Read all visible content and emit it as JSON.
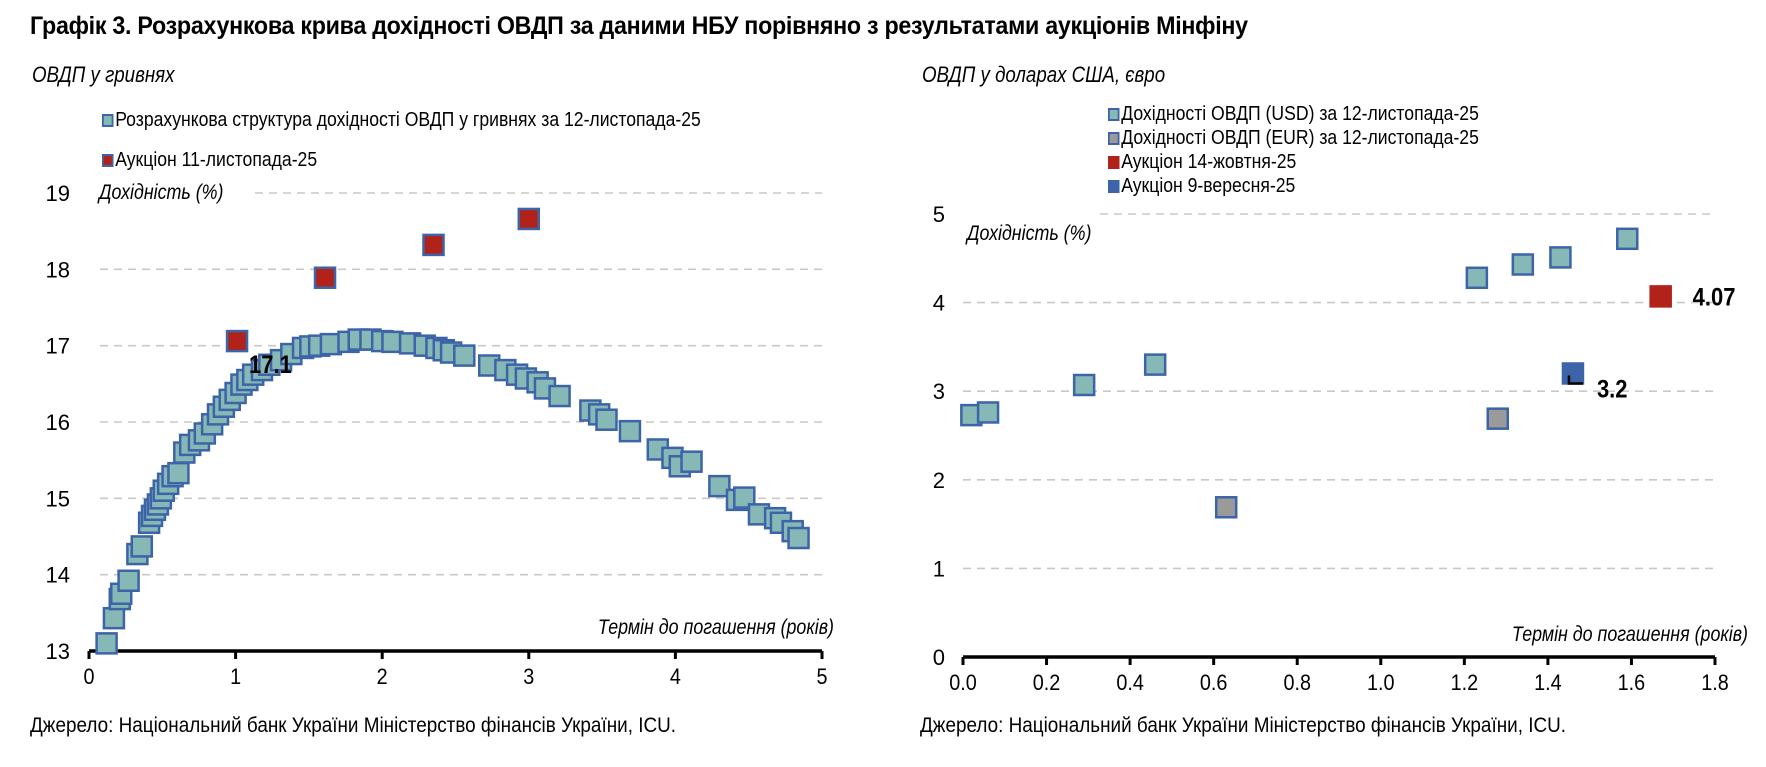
{
  "title": "Графік 3. Розрахункова крива дохідності ОВДП за даними НБУ порівняно з результатами аукціонів Мінфіну",
  "colors": {
    "curve_fill": "#86b9b5",
    "marker_border": "#3d64a8",
    "auction_red": "#b0221a",
    "eur_gray": "#9a9a9a",
    "auction_blue": "#3d64a8",
    "grid": "#c8c8c8"
  },
  "chart_data": [
    {
      "type": "scatter",
      "subtitle": "ОВДП у гривнях",
      "ylabel": "Дохідність (%)",
      "xlabel": "Термін до погашення (років)",
      "xlim": [
        0,
        5
      ],
      "ylim": [
        13,
        19
      ],
      "xticks": [
        "0",
        "1",
        "2",
        "3",
        "4",
        "5"
      ],
      "yticks": [
        "13",
        "14",
        "15",
        "16",
        "17",
        "18",
        "19"
      ],
      "grid": true,
      "legend_position": "top",
      "series": [
        {
          "name": "Розрахункова структура дохідності ОВДП у гривнях за 12-листопада-25",
          "color": "#86b9b5",
          "x": [
            0.12,
            0.17,
            0.21,
            0.22,
            0.27,
            0.33,
            0.36,
            0.41,
            0.43,
            0.45,
            0.47,
            0.49,
            0.51,
            0.54,
            0.57,
            0.61,
            0.65,
            0.69,
            0.75,
            0.79,
            0.84,
            0.88,
            0.92,
            0.96,
            1.0,
            1.04,
            1.08,
            1.12,
            1.18,
            1.23,
            1.31,
            1.38,
            1.46,
            1.51,
            1.57,
            1.65,
            1.77,
            1.84,
            1.92,
            2.0,
            2.07,
            2.19,
            2.29,
            2.37,
            2.42,
            2.47,
            2.56,
            2.73,
            2.84,
            2.92,
            2.98,
            3.06,
            3.11,
            3.21,
            3.42,
            3.48,
            3.53,
            3.69,
            3.88,
            3.98,
            4.03,
            4.11,
            4.3,
            4.42,
            4.47,
            4.57,
            4.68,
            4.72,
            4.8,
            4.84
          ],
          "y": [
            13.1,
            13.43,
            13.68,
            13.75,
            13.92,
            14.27,
            14.37,
            14.68,
            14.77,
            14.85,
            14.92,
            15.0,
            15.1,
            15.19,
            15.29,
            15.33,
            15.6,
            15.7,
            15.76,
            15.85,
            15.97,
            16.1,
            16.2,
            16.29,
            16.38,
            16.49,
            16.55,
            16.62,
            16.68,
            16.75,
            16.81,
            16.89,
            16.97,
            16.99,
            17.0,
            17.02,
            17.05,
            17.08,
            17.08,
            17.06,
            17.05,
            17.03,
            17.0,
            16.97,
            16.94,
            16.91,
            16.87,
            16.74,
            16.68,
            16.62,
            16.57,
            16.52,
            16.44,
            16.34,
            16.15,
            16.1,
            16.03,
            15.88,
            15.64,
            15.53,
            15.42,
            15.48,
            15.16,
            14.98,
            15.01,
            14.79,
            14.74,
            14.68,
            14.57,
            14.48
          ]
        },
        {
          "name": "Аукціон 11-листопада-25",
          "color": "#b0221a",
          "x": [
            1.01,
            1.61,
            2.35,
            3.0
          ],
          "y": [
            17.06,
            17.89,
            18.32,
            18.66
          ]
        }
      ],
      "annotations": [
        {
          "text": "17.1",
          "x": 1.01,
          "y": 17.06
        }
      ]
    },
    {
      "type": "scatter",
      "subtitle": "ОВДП у доларах США, євро",
      "ylabel": "Дохідність (%)",
      "xlabel": "Термін до погашення (років)",
      "xlim": [
        0,
        1.8
      ],
      "ylim": [
        0,
        5
      ],
      "xticks": [
        "0.0",
        "0.2",
        "0.4",
        "0.6",
        "0.8",
        "1.0",
        "1.2",
        "1.4",
        "1.6",
        "1.8"
      ],
      "yticks": [
        "0",
        "1",
        "2",
        "3",
        "4",
        "5"
      ],
      "grid": true,
      "legend_position": "top",
      "series": [
        {
          "name": "Дохідності ОВДП (USD) за 12-листопада-25",
          "color": "#86b9b5",
          "x": [
            0.02,
            0.06,
            0.29,
            0.46,
            1.23,
            1.34,
            1.43,
            1.59
          ],
          "y": [
            2.73,
            2.76,
            3.07,
            3.3,
            4.28,
            4.43,
            4.51,
            4.72
          ]
        },
        {
          "name": "Дохідності ОВДП (EUR) за 12-листопада-25",
          "color": "#9a9a9a",
          "x": [
            0.63,
            1.28
          ],
          "y": [
            1.69,
            2.69
          ]
        },
        {
          "name": "Аукціон 14-жовтня-25",
          "color": "#b0221a",
          "x": [
            1.67
          ],
          "y": [
            4.07
          ]
        },
        {
          "name": "Аукціон 9-вересня-25",
          "color": "#3d64a8",
          "x": [
            1.46
          ],
          "y": [
            3.2
          ]
        }
      ],
      "annotations": [
        {
          "text": "4.07",
          "x": 1.67,
          "y": 4.07
        },
        {
          "text": "3.2",
          "x": 1.46,
          "y": 3.2
        }
      ]
    }
  ],
  "source_left": "Джерело: Національний банк України Міністерство фінансів України, ICU.",
  "source_right": "Джерело: Національний банк України Міністерство фінансів України, ICU."
}
